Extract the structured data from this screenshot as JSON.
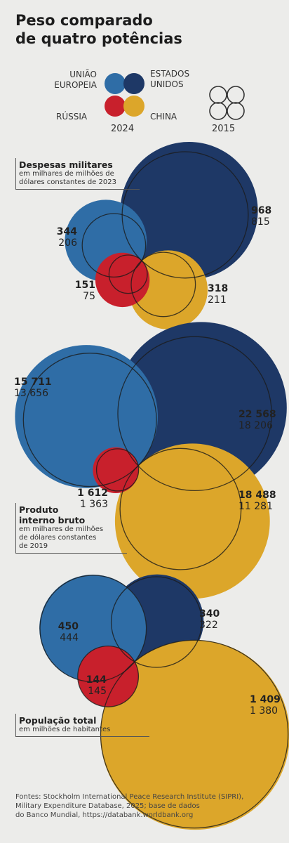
{
  "title_line1": "Peso comparado",
  "title_line2": "de quatro potências",
  "colors": {
    "eu": "#2f6da6",
    "us": "#1e3866",
    "russia": "#c8202c",
    "china": "#dca62a"
  },
  "legend": {
    "eu": "UNIÃO EUROPEIA",
    "eu_line1": "UNIÃO",
    "eu_line2": "EUROPEIA",
    "us_line1": "ESTADOS",
    "us_line2": "UNIDOS",
    "russia": "RÚSSIA",
    "china": "CHINA",
    "year_current": "2024",
    "year_previous": "2015"
  },
  "chart_data": [
    {
      "type": "proportional-circles",
      "title": "Despesas militares",
      "subtitle_line1": "em milhares de milhões de",
      "subtitle_line2": "dólares constantes de 2023",
      "series": [
        {
          "name": "2024",
          "values": {
            "eu": 344,
            "us": 968,
            "russia": 151,
            "china": 318
          }
        },
        {
          "name": "2015",
          "values": {
            "eu": 206,
            "us": 815,
            "russia": 75,
            "china": 211
          }
        }
      ],
      "labels": {
        "eu": {
          "cur": "344",
          "old": "206"
        },
        "us": {
          "cur": "968",
          "old": "815"
        },
        "russia": {
          "cur": "151",
          "old": "75"
        },
        "china": {
          "cur": "318",
          "old": "211"
        }
      }
    },
    {
      "type": "proportional-circles",
      "title_line1": "Produto",
      "title_line2": "interno bruto",
      "subtitle_line1": "em milhares de milhões",
      "subtitle_line2": "de dólares constantes",
      "subtitle_line3": "de 2019",
      "series": [
        {
          "name": "2024",
          "values": {
            "eu": 15711,
            "us": 22568,
            "russia": 1612,
            "china": 18488
          }
        },
        {
          "name": "2015",
          "values": {
            "eu": 13656,
            "us": 18206,
            "russia": 1363,
            "china": 11281
          }
        }
      ],
      "labels": {
        "eu": {
          "cur": "15 711",
          "old": "13 656"
        },
        "us": {
          "cur": "22 568",
          "old": "18 206"
        },
        "russia": {
          "cur": "1 612",
          "old": "1 363"
        },
        "china": {
          "cur": "18 488",
          "old": "11 281"
        }
      }
    },
    {
      "type": "proportional-circles",
      "title": "População total",
      "subtitle": "em milhões de habitantes",
      "series": [
        {
          "name": "2024",
          "values": {
            "eu": 450,
            "us": 340,
            "russia": 144,
            "china": 1409
          }
        },
        {
          "name": "2015",
          "values": {
            "eu": 444,
            "us": 322,
            "russia": 145,
            "china": 1380
          }
        }
      ],
      "labels": {
        "eu": {
          "cur": "450",
          "old": "444"
        },
        "us": {
          "cur": "340",
          "old": "322"
        },
        "russia": {
          "cur": "144",
          "old": "145"
        },
        "china": {
          "cur": "1 409",
          "old": "1 380"
        }
      }
    }
  ],
  "source_line1": "Fontes: Stockholm International Peace Research Institute (SIPRI),",
  "source_line2": "Military Expenditure Database, 2025; base de dados",
  "source_line3": "do Banco Mundial, https://databank.worldbank.org"
}
